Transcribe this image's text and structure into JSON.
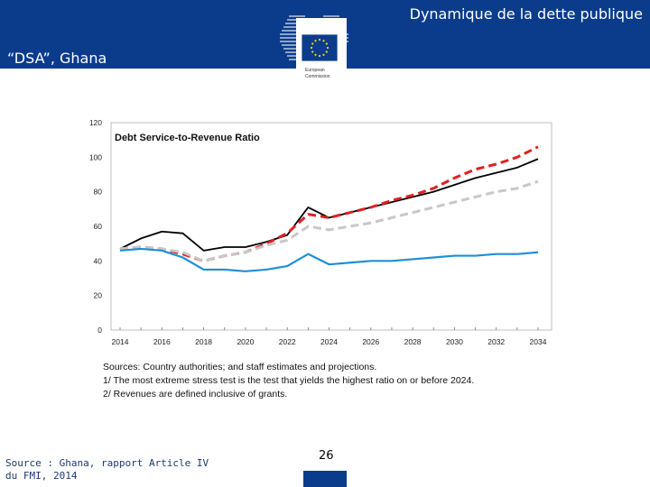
{
  "header": {
    "title": "Dynamique de la dette publique",
    "subtitle": "“DSA”, Ghana",
    "logo_text": [
      "European",
      "Commission"
    ]
  },
  "chart_data": {
    "type": "line",
    "title": "Debt Service-to-Revenue  Ratio",
    "xlabel": "",
    "ylabel": "",
    "x": [
      2014,
      2015,
      2016,
      2017,
      2018,
      2019,
      2020,
      2021,
      2022,
      2023,
      2024,
      2025,
      2026,
      2027,
      2028,
      2029,
      2030,
      2031,
      2032,
      2033,
      2034
    ],
    "xticks": [
      "2014",
      "2016",
      "2018",
      "2020",
      "2022",
      "2024",
      "2026",
      "2028",
      "2030",
      "2032",
      "2034"
    ],
    "yticks": [
      "0",
      "20",
      "40",
      "60",
      "80",
      "100",
      "120"
    ],
    "ylim": [
      0,
      120
    ],
    "grid": false,
    "series": [
      {
        "style": "solid",
        "color": "#000000",
        "values": [
          47,
          53,
          57,
          56,
          46,
          48,
          48,
          51,
          55,
          71,
          65,
          68,
          71,
          74,
          77,
          80,
          84,
          88,
          91,
          94,
          99
        ]
      },
      {
        "style": "dashed",
        "color": "#e02020",
        "values": [
          47,
          48,
          47,
          44,
          40,
          43,
          45,
          50,
          56,
          67,
          65,
          68,
          71,
          75,
          78,
          82,
          88,
          93,
          96,
          100,
          106
        ]
      },
      {
        "style": "dashed",
        "color": "#c8c8c8",
        "values": [
          47,
          48,
          47,
          45,
          40,
          43,
          45,
          49,
          52,
          60,
          58,
          60,
          62,
          65,
          68,
          71,
          74,
          77,
          80,
          82,
          86
        ]
      },
      {
        "style": "solid",
        "color": "#1e8fd6",
        "values": [
          46,
          47,
          46,
          42,
          35,
          35,
          34,
          35,
          37,
          44,
          38,
          39,
          40,
          40,
          41,
          42,
          43,
          43,
          44,
          44,
          45
        ]
      }
    ]
  },
  "sources": {
    "line1": "Sources: Country authorities; and staff estimates and projections.",
    "line2": "1/ The most extreme stress test is the test that yields the highest ratio on or before 2024.",
    "line3": "2/ Revenues are defined inclusive of grants."
  },
  "footer": {
    "source_line1": "Source : Ghana, rapport Article IV",
    "source_line2": "du FMI, 2014",
    "page_number": "26"
  },
  "colors": {
    "header_bg": "#0b3c8c",
    "header_text": "#ffffff"
  }
}
